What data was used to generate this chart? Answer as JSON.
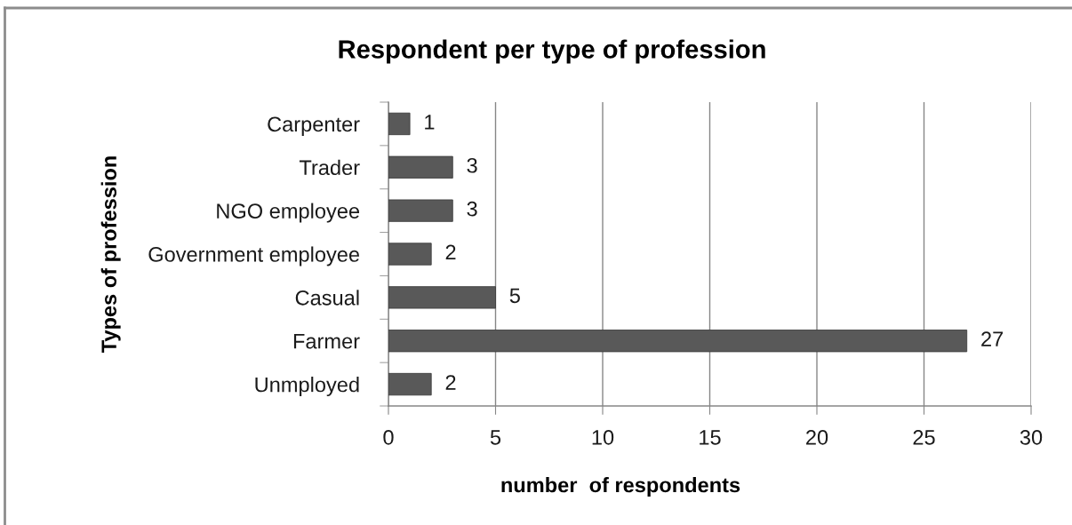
{
  "chart_data": {
    "type": "bar",
    "orientation": "horizontal",
    "title": "Respondent per type of profession",
    "xlabel": "number  of respondents",
    "ylabel": "Types of profession",
    "categories": [
      "Carpenter",
      "Trader",
      "NGO employee",
      "Government employee",
      "Casual",
      "Farmer",
      "Unmployed"
    ],
    "values": [
      1,
      3,
      3,
      2,
      5,
      27,
      2
    ],
    "color": "#595959",
    "xlim": [
      0,
      30
    ],
    "xticks": [
      0,
      5,
      10,
      15,
      20,
      25,
      30
    ],
    "grid": "x",
    "data_labels": true,
    "legend": false
  }
}
